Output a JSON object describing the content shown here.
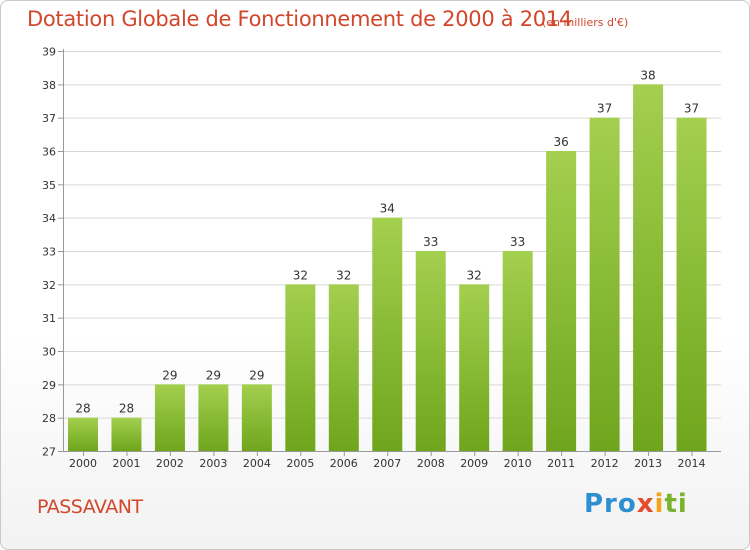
{
  "title": "Dotation Globale de Fonctionnement de 2000 à 2014",
  "unit_note": "(en milliers d'€)",
  "commune": "PASSAVANT",
  "logo": {
    "parts": [
      "Pro",
      "x",
      "i",
      "ti"
    ],
    "colors": [
      "#2e8fd0",
      "#e84a2c",
      "#f2a31b",
      "#7ab22e"
    ]
  },
  "colors": {
    "title": "#d2462a",
    "bar_light": "#a3d04f",
    "bar_dark": "#6fa51c",
    "grid": "#d9d9d9",
    "axis_text": "#333333"
  },
  "chart_data": {
    "type": "bar",
    "categories": [
      "2000",
      "2001",
      "2002",
      "2003",
      "2004",
      "2005",
      "2006",
      "2007",
      "2008",
      "2009",
      "2010",
      "2011",
      "2012",
      "2013",
      "2014"
    ],
    "values": [
      28,
      28,
      29,
      29,
      29,
      32,
      32,
      34,
      33,
      32,
      33,
      36,
      37,
      38,
      37
    ],
    "data_labels": [
      "28",
      "28",
      "29",
      "29",
      "29",
      "32",
      "32",
      "34",
      "33",
      "32",
      "33",
      "36",
      "37",
      "38",
      "37"
    ],
    "yticks": [
      "27",
      "28",
      "29",
      "30",
      "31",
      "32",
      "33",
      "34",
      "35",
      "36",
      "37",
      "38",
      "39"
    ],
    "ylim": [
      27,
      39
    ],
    "grid": true,
    "legend": "none",
    "title": "Dotation Globale de Fonctionnement de 2000 à 2014",
    "xlabel": "",
    "ylabel": ""
  }
}
